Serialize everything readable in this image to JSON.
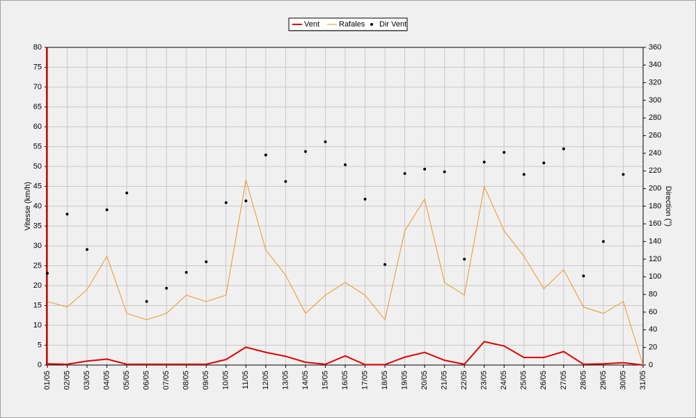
{
  "chart_data": {
    "type": "line",
    "categories": [
      "01/05",
      "02/05",
      "03/05",
      "04/05",
      "05/05",
      "06/05",
      "07/05",
      "08/05",
      "09/05",
      "10/05",
      "11/05",
      "12/05",
      "13/05",
      "14/05",
      "15/05",
      "16/05",
      "17/05",
      "18/05",
      "19/05",
      "20/05",
      "21/05",
      "22/05",
      "23/05",
      "24/05",
      "25/05",
      "26/05",
      "27/05",
      "28/05",
      "29/05",
      "30/05",
      "31/05"
    ],
    "series": [
      {
        "name": "Vent",
        "color": "#e00000",
        "kind": "line",
        "values": [
          0.3,
          0.2,
          1,
          1.5,
          0.2,
          0.2,
          0.2,
          0.2,
          0.2,
          1.4,
          4.5,
          3.2,
          2.2,
          0.7,
          0.2,
          2.3,
          0.1,
          0.1,
          2,
          3.2,
          1.2,
          0.2,
          5.9,
          4.8,
          1.9,
          1.9,
          3.4,
          0.2,
          0.3,
          0.6,
          0
        ]
      },
      {
        "name": "Rafales",
        "color": "#f0961e",
        "kind": "line",
        "values": [
          16,
          14.6,
          19,
          27.4,
          13,
          11.4,
          13,
          17.6,
          16,
          17.6,
          46.6,
          29,
          22.6,
          13,
          17.6,
          20.8,
          17.6,
          11.4,
          33.8,
          41.8,
          20.8,
          17.6,
          45,
          33.8,
          27.4,
          19.2,
          24,
          14.6,
          13,
          16,
          0
        ]
      },
      {
        "name": "Dir Vent",
        "color": "#000000",
        "kind": "dots",
        "axis": "y2",
        "values": [
          104,
          171,
          131,
          176,
          195,
          72,
          87,
          105,
          117,
          184,
          186,
          238,
          208,
          242,
          253,
          227,
          188,
          114,
          217,
          222,
          219,
          120,
          230,
          241,
          216,
          229,
          245,
          101,
          140,
          216,
          null
        ]
      }
    ],
    "ylabel": "Vitesse (km/h)",
    "y2label": "Direction (°)",
    "ylim": [
      0,
      80
    ],
    "yticks": [
      0,
      5,
      10,
      15,
      20,
      25,
      30,
      35,
      40,
      45,
      50,
      55,
      60,
      65,
      70,
      75,
      80
    ],
    "y2lim": [
      0,
      360
    ],
    "y2ticks": [
      0,
      20,
      40,
      60,
      80,
      100,
      120,
      140,
      160,
      180,
      200,
      220,
      240,
      260,
      280,
      300,
      320,
      340,
      360
    ],
    "grid": true,
    "legend": "top"
  }
}
